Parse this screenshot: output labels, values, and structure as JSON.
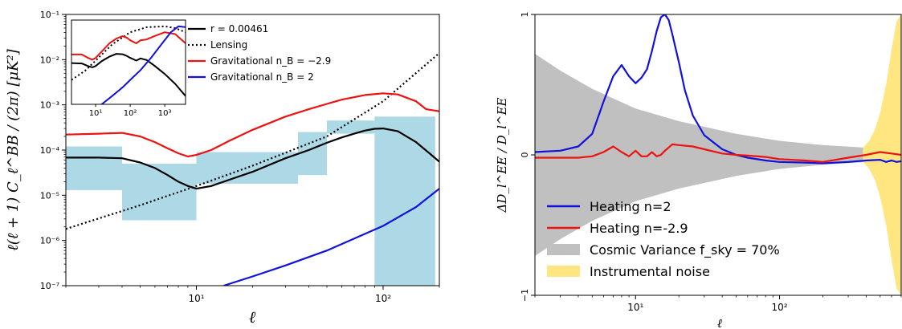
{
  "colors": {
    "black": "#000000",
    "red": "#ee1111",
    "blue": "#1111dd",
    "lightblue": "#add8e6",
    "grey": "#c0c0c0",
    "yellow": "#ffe680"
  },
  "chart_data": [
    {
      "type": "line",
      "title": "",
      "xlabel": "ℓ",
      "ylabel": "ℓ(ℓ + 1) C_ℓ^BB / (2π) [μK²]",
      "xscale": "log",
      "yscale": "log",
      "xlim": [
        2,
        200
      ],
      "ylim": [
        1e-07,
        0.1
      ],
      "xticks": [
        {
          "value": 10,
          "label": "10¹"
        },
        {
          "value": 100,
          "label": "10²"
        }
      ],
      "yticks": [
        {
          "value": 1e-07,
          "label": "10⁻⁷"
        },
        {
          "value": 1e-06,
          "label": "10⁻⁶"
        },
        {
          "value": 1e-05,
          "label": "10⁻⁵"
        },
        {
          "value": 0.0001,
          "label": "10⁻⁴"
        },
        {
          "value": 0.001,
          "label": "10⁻³"
        },
        {
          "value": 0.01,
          "label": "10⁻²"
        },
        {
          "value": 0.1,
          "label": "10⁻¹"
        }
      ],
      "legend_position": "top-right",
      "legend": [
        {
          "label": "r = 0.00461",
          "style": "solid",
          "color": "#000000"
        },
        {
          "label": "Lensing",
          "style": "dotted",
          "color": "#000000"
        },
        {
          "label": "Gravitational n_B = −2.9",
          "style": "solid",
          "color": "#ee1111"
        },
        {
          "label": "Gravitational n_B = 2",
          "style": "solid",
          "color": "#1111dd"
        }
      ],
      "error_bands": [
        {
          "x0": 2,
          "x1": 4,
          "low": 1.3e-05,
          "high": 0.00012
        },
        {
          "x0": 4,
          "x1": 10,
          "low": 2.8e-06,
          "high": 5e-05
        },
        {
          "x0": 10,
          "x1": 35,
          "low": 1.8e-05,
          "high": 9e-05
        },
        {
          "x0": 35,
          "x1": 50,
          "low": 2.8e-05,
          "high": 0.00025
        },
        {
          "x0": 50,
          "x1": 90,
          "low": 0.00023,
          "high": 0.00045
        },
        {
          "x0": 90,
          "x1": 190,
          "low": 1e-07,
          "high": 0.00055
        }
      ],
      "series": [
        {
          "name": "r = 0.00461",
          "color": "#000000",
          "style": "solid",
          "x": [
            2,
            3,
            4,
            5,
            6,
            7,
            8,
            9,
            10,
            12,
            15,
            20,
            30,
            40,
            50,
            60,
            70,
            80,
            90,
            100,
            120,
            150,
            180,
            200
          ],
          "y": [
            6.8e-05,
            6.8e-05,
            6.6e-05,
            5.3e-05,
            4e-05,
            2.8e-05,
            2e-05,
            1.6e-05,
            1.4e-05,
            1.6e-05,
            2.2e-05,
            3.3e-05,
            6.6e-05,
            0.0001,
            0.000145,
            0.00019,
            0.00023,
            0.00027,
            0.000295,
            0.0003,
            0.00026,
            0.00015,
            8e-05,
            5.5e-05
          ]
        },
        {
          "name": "Lensing",
          "color": "#000000",
          "style": "dotted",
          "x": [
            2,
            5,
            10,
            20,
            50,
            100,
            200
          ],
          "y": [
            1.8e-06,
            6e-06,
            1.6e-05,
            4.5e-05,
            0.0002,
            0.0012,
            0.014
          ]
        },
        {
          "name": "Gravitational n_B = −2.9",
          "color": "#ee1111",
          "style": "solid",
          "x": [
            2,
            3,
            4,
            5,
            6,
            7,
            8,
            9,
            10,
            12,
            15,
            20,
            30,
            40,
            50,
            60,
            80,
            100,
            120,
            150,
            170,
            200
          ],
          "y": [
            0.00022,
            0.00023,
            0.00024,
            0.0002,
            0.00015,
            0.00011,
            8.5e-05,
            7.2e-05,
            7.8e-05,
            0.0001,
            0.00016,
            0.00028,
            0.00055,
            0.0008,
            0.00105,
            0.0013,
            0.00165,
            0.0018,
            0.0017,
            0.0012,
            0.0008,
            0.00072
          ]
        },
        {
          "name": "Gravitational n_B = 2",
          "color": "#1111dd",
          "style": "solid",
          "x": [
            14,
            20,
            30,
            50,
            80,
            100,
            150,
            200
          ],
          "y": [
            1e-07,
            1.6e-07,
            2.8e-07,
            6e-07,
            1.4e-06,
            2.1e-06,
            5.5e-06,
            1.4e-05
          ]
        }
      ],
      "inset": {
        "xscale": "log",
        "yscale": "log",
        "xlim": [
          2,
          4000
        ],
        "ylim": [
          0.0005,
          0.06
        ],
        "xticks": [
          {
            "value": 10,
            "label": "10¹"
          },
          {
            "value": 100,
            "label": "10²"
          },
          {
            "value": 1000,
            "label": "10³"
          }
        ],
        "series": [
          {
            "name": "r = 0.00461",
            "color": "#000000",
            "style": "solid",
            "x": [
              2,
              4,
              6,
              8,
              10,
              15,
              25,
              40,
              60,
              80,
              100,
              150,
              200,
              300,
              500,
              1000,
              2000,
              4000
            ],
            "y": [
              0.0052,
              0.0051,
              0.0044,
              0.0041,
              0.0044,
              0.0058,
              0.0075,
              0.0088,
              0.0086,
              0.0078,
              0.007,
              0.006,
              0.0068,
              0.0062,
              0.0045,
              0.0028,
              0.0016,
              0.0008
            ]
          },
          {
            "name": "Lensing",
            "color": "#000000",
            "style": "dotted",
            "x": [
              2,
              5,
              10,
              30,
              100,
              300,
              1000,
              2000,
              4000
            ],
            "y": [
              0.002,
              0.0034,
              0.006,
              0.015,
              0.03,
              0.04,
              0.042,
              0.038,
              0.03
            ]
          },
          {
            "name": "Gravitational n_B = −2.9",
            "color": "#ee1111",
            "style": "solid",
            "x": [
              2,
              4,
              6,
              8,
              10,
              15,
              25,
              40,
              60,
              80,
              100,
              150,
              200,
              300,
              500,
              1000,
              2000,
              4000
            ],
            "y": [
              0.0085,
              0.0085,
              0.007,
              0.0063,
              0.007,
              0.01,
              0.016,
              0.021,
              0.024,
              0.022,
              0.019,
              0.016,
              0.019,
              0.02,
              0.024,
              0.03,
              0.027,
              0.016
            ]
          },
          {
            "name": "Gravitational n_B = 2",
            "color": "#1111dd",
            "style": "solid",
            "x": [
              15,
              30,
              60,
              100,
              200,
              400,
              800,
              1500,
              2500,
              4000
            ],
            "y": [
              0.0005,
              0.0008,
              0.0013,
              0.002,
              0.0035,
              0.007,
              0.015,
              0.03,
              0.042,
              0.04
            ]
          }
        ]
      }
    },
    {
      "type": "line",
      "title": "",
      "xlabel": "ℓ",
      "ylabel": "ΔD_l^EE / D_l^EE",
      "xscale": "log",
      "yscale": "linear",
      "xlim": [
        2,
        700
      ],
      "ylim": [
        -1,
        1
      ],
      "xticks": [
        {
          "value": 10,
          "label": "10¹"
        },
        {
          "value": 100,
          "label": "10²"
        }
      ],
      "yticks": [
        {
          "value": -1,
          "label": "−1"
        },
        {
          "value": 0,
          "label": "0"
        },
        {
          "value": 1,
          "label": "1"
        }
      ],
      "legend_position": "lower-left",
      "legend": [
        {
          "label": "Heating n=2",
          "kind": "line",
          "color": "#1111dd"
        },
        {
          "label": "Heating n=-2.9",
          "kind": "line",
          "color": "#ee1111"
        },
        {
          "label": "Cosmic Variance f_sky = 70%",
          "kind": "patch",
          "color": "#c0c0c0"
        },
        {
          "label": "Instrumental noise",
          "kind": "patch",
          "color": "#ffe680"
        }
      ],
      "cosmic_variance": {
        "x": [
          2,
          3,
          5,
          10,
          20,
          50,
          100,
          200,
          500,
          700
        ],
        "halfwidth": [
          0.72,
          0.6,
          0.47,
          0.33,
          0.24,
          0.15,
          0.1,
          0.07,
          0.045,
          0.04
        ]
      },
      "instrumental_noise": {
        "x": [
          380,
          420,
          460,
          500,
          550,
          600,
          650,
          700
        ],
        "halfwidth": [
          0.05,
          0.1,
          0.18,
          0.3,
          0.5,
          0.75,
          0.95,
          1.0
        ]
      },
      "series": [
        {
          "name": "Heating n=2",
          "color": "#1111dd",
          "x": [
            2,
            3,
            4,
            5,
            6,
            7,
            8,
            9,
            10,
            11,
            12,
            13,
            14,
            15,
            16,
            17,
            18,
            20,
            22,
            25,
            30,
            40,
            50,
            60,
            80,
            100,
            150,
            200,
            300,
            400,
            500,
            550,
            600,
            650,
            700
          ],
          "y": [
            0.02,
            0.03,
            0.06,
            0.15,
            0.38,
            0.56,
            0.64,
            0.56,
            0.51,
            0.55,
            0.61,
            0.74,
            0.88,
            0.98,
            1.0,
            0.96,
            0.86,
            0.66,
            0.46,
            0.28,
            0.14,
            0.04,
            0.0,
            -0.02,
            -0.04,
            -0.05,
            -0.055,
            -0.06,
            -0.05,
            -0.04,
            -0.035,
            -0.05,
            -0.04,
            -0.05,
            -0.045
          ]
        },
        {
          "name": "Heating n=-2.9",
          "color": "#ee1111",
          "x": [
            2,
            3,
            4,
            5,
            6,
            7,
            8,
            9,
            10,
            11,
            12,
            13,
            14,
            15,
            16,
            18,
            20,
            25,
            30,
            40,
            50,
            60,
            80,
            100,
            150,
            200,
            300,
            400,
            500,
            600,
            700
          ],
          "y": [
            -0.02,
            -0.02,
            -0.02,
            -0.01,
            0.02,
            0.06,
            0.02,
            -0.01,
            0.03,
            -0.01,
            -0.01,
            0.02,
            -0.01,
            0.0,
            0.03,
            0.075,
            0.07,
            0.06,
            0.04,
            0.01,
            0.0,
            -0.005,
            -0.015,
            -0.03,
            -0.04,
            -0.05,
            -0.02,
            0.0,
            0.02,
            0.01,
            0.0
          ]
        }
      ]
    }
  ]
}
